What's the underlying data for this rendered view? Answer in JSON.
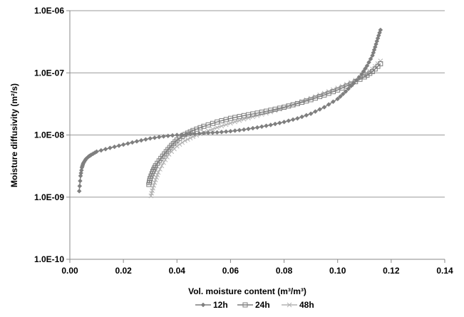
{
  "chart_data": {
    "type": "line",
    "title": "",
    "xlabel": "Vol. moisture content (m³/m³)",
    "ylabel": "Moisture diffusivity (m²/s)",
    "xlim": [
      0,
      0.14
    ],
    "ylim": [
      1e-10,
      1e-06
    ],
    "yscale": "log",
    "grid": "horizontal major gridlines",
    "legend": "bottom",
    "x_tick_labels": [
      "0.00",
      "0.02",
      "0.04",
      "0.06",
      "0.08",
      "0.10",
      "0.12",
      "0.14"
    ],
    "y_tick_labels": [
      "1.0E-10",
      "1.0E-09",
      "1.0E-08",
      "1.0E-07",
      "1.0E-06"
    ],
    "series": [
      {
        "name": "12h",
        "marker": "diamond",
        "color": "#7f7f7f",
        "x": [
          0.0035,
          0.004,
          0.0045,
          0.005,
          0.006,
          0.007,
          0.008,
          0.01,
          0.015,
          0.02,
          0.025,
          0.03,
          0.035,
          0.04,
          0.045,
          0.05,
          0.055,
          0.06,
          0.065,
          0.07,
          0.075,
          0.08,
          0.085,
          0.09,
          0.095,
          0.1,
          0.103,
          0.106,
          0.109,
          0.111,
          0.113,
          0.114,
          0.115,
          0.116
        ],
        "y": [
          1.25e-09,
          2.2e-09,
          3e-09,
          3.5e-09,
          4.1e-09,
          4.5e-09,
          4.8e-09,
          5.4e-09,
          6.2e-09,
          7e-09,
          7.9e-09,
          8.8e-09,
          9.5e-09,
          1e-08,
          1.03e-08,
          1.07e-08,
          1.1e-08,
          1.15e-08,
          1.22e-08,
          1.32e-08,
          1.45e-08,
          1.62e-08,
          1.85e-08,
          2.2e-08,
          2.8e-08,
          3.8e-08,
          5e-08,
          6.8e-08,
          9.5e-08,
          1.3e-07,
          1.9e-07,
          2.6e-07,
          3.6e-07,
          4.9e-07
        ]
      },
      {
        "name": "24h",
        "marker": "square",
        "color": "#7f7f7f",
        "x": [
          0.0295,
          0.03,
          0.031,
          0.032,
          0.034,
          0.036,
          0.038,
          0.04,
          0.043,
          0.046,
          0.05,
          0.055,
          0.06,
          0.065,
          0.07,
          0.075,
          0.08,
          0.085,
          0.09,
          0.095,
          0.1,
          0.105,
          0.11,
          0.113,
          0.116
        ],
        "y": [
          1.6e-09,
          2e-09,
          2.6e-09,
          3.2e-09,
          4.2e-09,
          5.4e-09,
          6.8e-09,
          8.3e-09,
          1.02e-08,
          1.18e-08,
          1.38e-08,
          1.62e-08,
          1.85e-08,
          2.05e-08,
          2.25e-08,
          2.5e-08,
          2.8e-08,
          3.2e-08,
          3.7e-08,
          4.4e-08,
          5.3e-08,
          6.6e-08,
          8.6e-08,
          1.05e-07,
          1.4e-07
        ]
      },
      {
        "name": "48h",
        "marker": "x",
        "color": "#b4b4b4",
        "x": [
          0.0303,
          0.031,
          0.032,
          0.033,
          0.035,
          0.037,
          0.04,
          0.043,
          0.046,
          0.05,
          0.055,
          0.06,
          0.065,
          0.07,
          0.075,
          0.08,
          0.085,
          0.09,
          0.095,
          0.1,
          0.105,
          0.11,
          0.113,
          0.116
        ],
        "y": [
          1.05e-09,
          1.4e-09,
          1.9e-09,
          2.5e-09,
          3.6e-09,
          4.9e-09,
          6.6e-09,
          8.1e-09,
          9.4e-09,
          1.1e-08,
          1.32e-08,
          1.55e-08,
          1.8e-08,
          2.05e-08,
          2.35e-08,
          2.75e-08,
          3.25e-08,
          3.9e-08,
          4.7e-08,
          5.7e-08,
          7e-08,
          9e-08,
          1.15e-07,
          1.55e-07
        ]
      }
    ]
  }
}
